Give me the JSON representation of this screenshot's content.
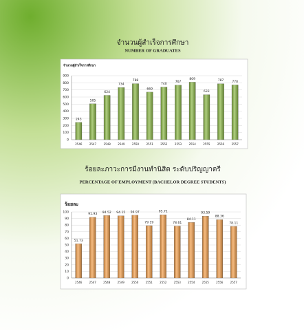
{
  "chart_data": [
    {
      "type": "bar",
      "title": "จำนวนผู้สำเร็จการศึกษา",
      "subtitle": "NUMBER OF GRADUATES",
      "y_label": "จำนวนผู้สำเร็จการศึกษา",
      "categories": [
        "2546",
        "2547",
        "2548",
        "2549",
        "2550",
        "2551",
        "2552",
        "2553",
        "2554",
        "2555",
        "2556",
        "2557"
      ],
      "values": [
        243,
        505,
        624,
        734,
        788,
        669,
        740,
        767,
        809,
        633,
        787,
        770
      ],
      "color": "#8dba48",
      "ylim": [
        0,
        900
      ],
      "yticks": [
        0,
        100,
        200,
        300,
        400,
        500,
        600,
        700,
        800,
        900
      ],
      "grid": true
    },
    {
      "type": "bar",
      "title": "ร้อยละภาวะการมีงานทำนิสิต ระดับปริญญาตรี",
      "subtitle": "PERCENTAGE OF EMPLOYMENT (BACHELOR DEGREE STUDENTS)",
      "y_label": "ร้อยละ",
      "categories": [
        "2546",
        "2547",
        "2548",
        "2549",
        "2550",
        "2551",
        "2552",
        "2553",
        "2554",
        "2555",
        "2556",
        "2557"
      ],
      "values": [
        51.73,
        91.93,
        94.52,
        94.15,
        94.97,
        79.19,
        95.71,
        78.61,
        84.11,
        93.59,
        88.36,
        78.11
      ],
      "color": "#f4a04c",
      "ylim": [
        0,
        100
      ],
      "yticks": [
        0,
        10,
        20,
        30,
        40,
        50,
        60,
        70,
        80,
        90,
        100
      ],
      "grid": true
    }
  ]
}
